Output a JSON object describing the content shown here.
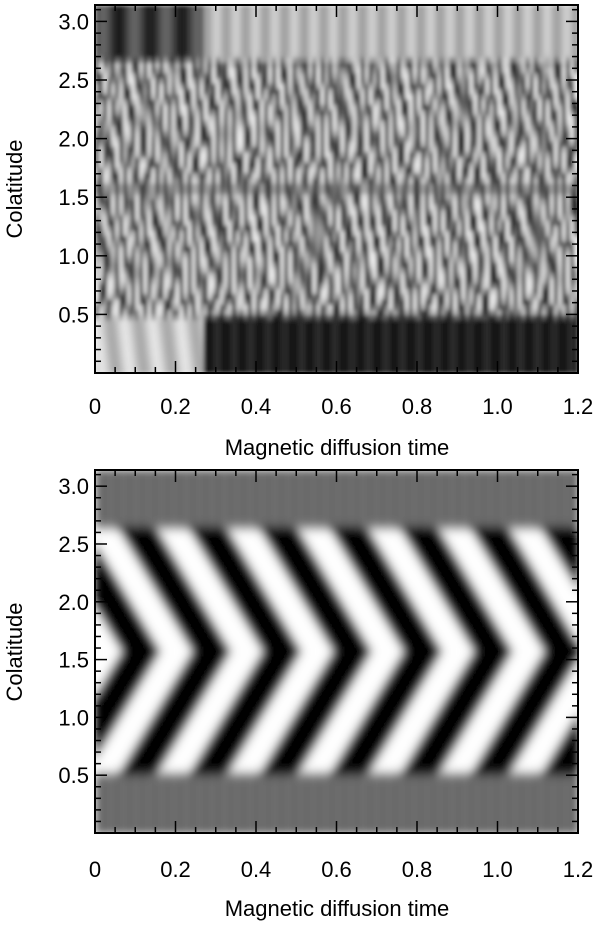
{
  "chart_data": [
    {
      "type": "heatmap",
      "name": "top-panel",
      "title": "",
      "xlabel": "Magnetic diffusion time",
      "ylabel": "Colatitude",
      "xlim": [
        0,
        1.2
      ],
      "ylim": [
        0,
        3.14
      ],
      "x_ticks": [
        "0",
        "0.2",
        "0.4",
        "0.6",
        "0.8",
        "1.0",
        "1.2"
      ],
      "x_tick_values": [
        0,
        0.2,
        0.4,
        0.6,
        0.8,
        1.0,
        1.2
      ],
      "y_ticks": [
        "0.5",
        "1.0",
        "1.5",
        "2.0",
        "2.5",
        "3.0"
      ],
      "y_tick_values": [
        0.5,
        1.0,
        1.5,
        2.0,
        2.5,
        3.0
      ],
      "colormap": "grayscale",
      "pattern": "irregular",
      "active_band": [
        0.5,
        2.65
      ],
      "equator": 1.57,
      "transient_end": 0.27
    },
    {
      "type": "heatmap",
      "name": "bottom-panel",
      "title": "",
      "xlabel": "Magnetic diffusion time",
      "ylabel": "Colatitude",
      "xlim": [
        0,
        1.2
      ],
      "ylim": [
        0,
        3.14
      ],
      "x_ticks": [
        "0",
        "0.2",
        "0.4",
        "0.6",
        "0.8",
        "1.0",
        "1.2"
      ],
      "x_tick_values": [
        0,
        0.2,
        0.4,
        0.6,
        0.8,
        1.0,
        1.2
      ],
      "y_ticks": [
        "0.5",
        "1.0",
        "1.5",
        "2.0",
        "2.5",
        "3.0"
      ],
      "y_tick_values": [
        0.5,
        1.0,
        1.5,
        2.0,
        2.5,
        3.0
      ],
      "colormap": "grayscale",
      "pattern": "butterfly",
      "active_band": [
        0.5,
        2.65
      ],
      "equator": 1.57,
      "period": 0.175
    }
  ]
}
